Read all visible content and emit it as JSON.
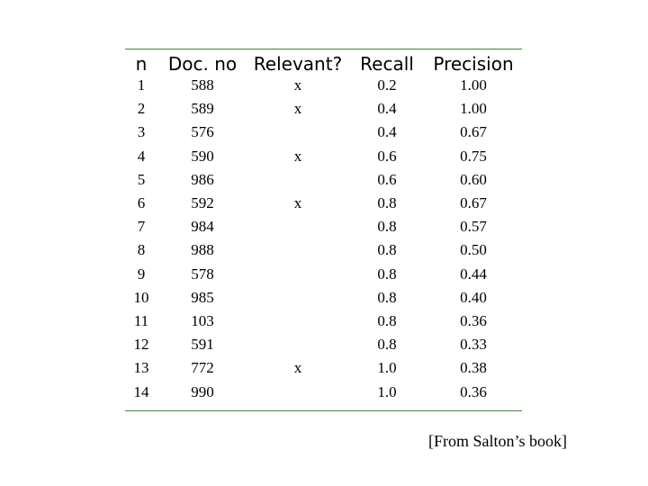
{
  "table": {
    "columns": [
      "n",
      "Doc. no",
      "Relevant?",
      "Recall",
      "Precision"
    ],
    "rows": [
      {
        "n": "1",
        "doc": "588",
        "relevant": "x",
        "recall": "0.2",
        "precision": "1.00"
      },
      {
        "n": "2",
        "doc": "589",
        "relevant": "x",
        "recall": "0.4",
        "precision": "1.00"
      },
      {
        "n": "3",
        "doc": "576",
        "relevant": "",
        "recall": "0.4",
        "precision": "0.67"
      },
      {
        "n": "4",
        "doc": "590",
        "relevant": "x",
        "recall": "0.6",
        "precision": "0.75"
      },
      {
        "n": "5",
        "doc": "986",
        "relevant": "",
        "recall": "0.6",
        "precision": "0.60"
      },
      {
        "n": "6",
        "doc": "592",
        "relevant": "x",
        "recall": "0.8",
        "precision": "0.67"
      },
      {
        "n": "7",
        "doc": "984",
        "relevant": "",
        "recall": "0.8",
        "precision": "0.57"
      },
      {
        "n": "8",
        "doc": "988",
        "relevant": "",
        "recall": "0.8",
        "precision": "0.50"
      },
      {
        "n": "9",
        "doc": "578",
        "relevant": "",
        "recall": "0.8",
        "precision": "0.44"
      },
      {
        "n": "10",
        "doc": "985",
        "relevant": "",
        "recall": "0.8",
        "precision": "0.40"
      },
      {
        "n": "11",
        "doc": "103",
        "relevant": "",
        "recall": "0.8",
        "precision": "0.36"
      },
      {
        "n": "12",
        "doc": "591",
        "relevant": "",
        "recall": "0.8",
        "precision": "0.33"
      },
      {
        "n": "13",
        "doc": "772",
        "relevant": "x",
        "recall": "1.0",
        "precision": "0.38"
      },
      {
        "n": "14",
        "doc": "990",
        "relevant": "",
        "recall": "1.0",
        "precision": "0.36"
      }
    ]
  },
  "caption": "[From Salton’s book]",
  "colors": {
    "rule": "#3a8a3a",
    "text": "#000000",
    "background": "#ffffff"
  }
}
